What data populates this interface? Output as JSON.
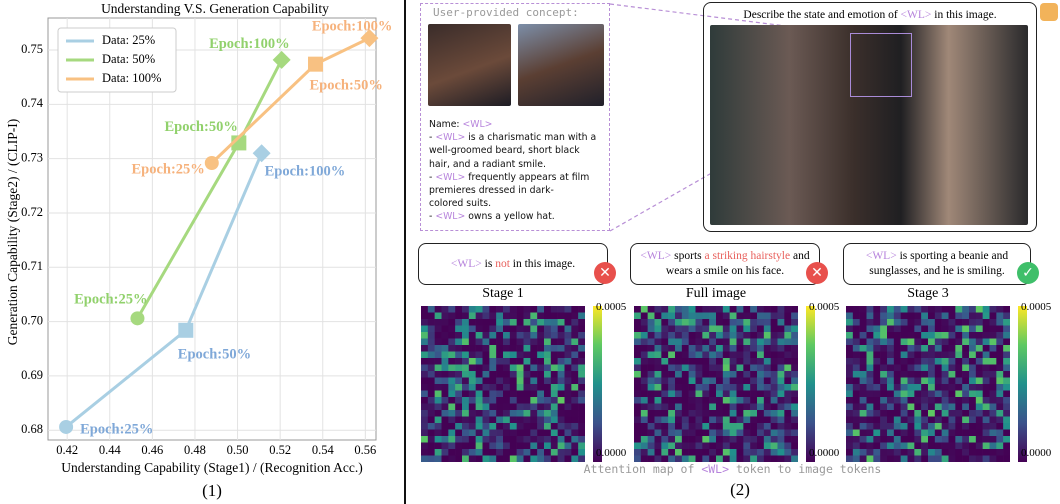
{
  "chart_data": {
    "type": "line",
    "title": "Understanding V.S. Generation Capability",
    "xlabel": "Understanding Capability (Stage1) / (Recognition Acc.)",
    "ylabel": "Generation Capability (Stage2) / (CLIP-I)",
    "caption": "(1)",
    "xlim": [
      0.411,
      0.565
    ],
    "ylim": [
      0.6782,
      0.7559
    ],
    "xticks": [
      0.42,
      0.44,
      0.46,
      0.48,
      {
        "value": 0.5,
        "label": "0.50"
      },
      0.52,
      0.54,
      0.56
    ],
    "yticks": [
      0.68,
      0.69,
      {
        "value": 0.7,
        "label": "0.70"
      },
      0.71,
      0.72,
      0.73,
      0.74,
      0.75
    ],
    "grid": true,
    "legend": "upper left",
    "markers": [
      "circle",
      "square",
      "diamond"
    ],
    "series": [
      {
        "name": "Data: 25%",
        "color": "#a9cfe3",
        "label_color": "#7fa8d8",
        "x": [
          0.4195,
          0.4757,
          0.5113
        ],
        "values": [
          0.6806,
          0.6984,
          0.731
        ],
        "point_labels": [
          "Epoch:25%",
          "Epoch:50%",
          "Epoch:100%"
        ]
      },
      {
        "name": "Data: 50%",
        "color": "#a6d97f",
        "label_color": "#91d16c",
        "x": [
          0.453,
          0.5006,
          0.5207
        ],
        "values": [
          0.7006,
          0.7329,
          0.7482
        ],
        "point_labels": [
          "Epoch:25%",
          "Epoch:50%",
          "Epoch:100%"
        ]
      },
      {
        "name": "Data: 100%",
        "color": "#f8c182",
        "label_color": "#f6b27c",
        "x": [
          0.4879,
          0.5366,
          0.5619
        ],
        "values": [
          0.7292,
          0.7474,
          0.7522
        ],
        "point_labels": [
          "Epoch:25%",
          "Epoch:50%",
          "Epoch:100%"
        ]
      }
    ]
  },
  "concept": {
    "title": "User-provided concept:",
    "lines": [
      [
        {
          "text": "Name: "
        },
        {
          "text": "<WL>",
          "style": "token"
        }
      ],
      [
        {
          "text": "- "
        },
        {
          "text": "<WL>",
          "style": "token"
        },
        {
          "text": " is a charismatic man with a"
        }
      ],
      [
        {
          "text": "well-groomed beard, short black"
        }
      ],
      [
        {
          "text": "hair, and a radiant smile."
        }
      ],
      [
        {
          "text": "- "
        },
        {
          "text": "<WL>",
          "style": "token"
        },
        {
          "text": " frequently appears at film"
        }
      ],
      [
        {
          "text": "premieres dressed in dark-"
        }
      ],
      [
        {
          "text": "colored suits."
        }
      ],
      [
        {
          "text": "- "
        },
        {
          "text": "<WL>",
          "style": "token"
        },
        {
          "text": " owns a yellow hat."
        }
      ]
    ]
  },
  "question": {
    "lines": [
      [
        {
          "text": "Describe the state and emotion of "
        },
        {
          "text": "<WL>",
          "style": "token"
        },
        {
          "text": " in this image."
        }
      ]
    ]
  },
  "answers": [
    {
      "verdict": "wrong",
      "lines": [
        [
          {
            "text": "<WL>",
            "style": "token"
          },
          {
            "text": " is "
          },
          {
            "text": "not",
            "style": "wrong"
          },
          {
            "text": " in this image."
          }
        ]
      ]
    },
    {
      "verdict": "wrong",
      "lines": [
        [
          {
            "text": "<WL>",
            "style": "token"
          },
          {
            "text": " sports "
          },
          {
            "text": "a striking hairstyle",
            "style": "wrong"
          },
          {
            "text": " and"
          }
        ],
        [
          {
            "text": "wears a smile on his face."
          }
        ]
      ]
    },
    {
      "verdict": "right",
      "lines": [
        [
          {
            "text": "<WL>",
            "style": "token"
          },
          {
            "text": " is sporting a beanie and"
          }
        ],
        [
          {
            "text": "sunglasses, and he is smiling."
          }
        ]
      ]
    }
  ],
  "heatmaps": {
    "titles": [
      "Stage 1",
      "Full image",
      "Stage 3"
    ],
    "colorbar_max": "0.0005",
    "colorbar_min": "0.0000",
    "caption": {
      "lines": [
        [
          {
            "text": "Attention map of "
          },
          {
            "text": "<WL>",
            "style": "token"
          },
          {
            "text": " token to image tokens"
          }
        ]
      ]
    }
  },
  "panel_label": "(2)"
}
